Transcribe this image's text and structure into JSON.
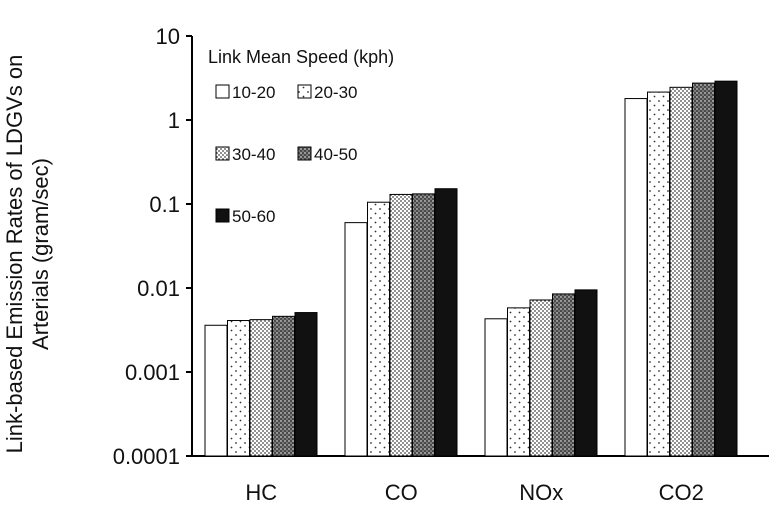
{
  "chart_data": {
    "type": "bar",
    "ylabel_line1": "Link-based Emission Rates of LDGVs on",
    "ylabel_line2": "Arterials (gram/sec)",
    "y_scale": "log",
    "ylim": [
      0.0001,
      10
    ],
    "yticks": [
      "10",
      "1",
      "0.1",
      "0.01",
      "0.001",
      "0.0001"
    ],
    "categories": [
      "HC",
      "CO",
      "NOx",
      "CO2"
    ],
    "legend": {
      "title": "Link Mean Speed (kph)",
      "placement": "top-left inside"
    },
    "series": [
      {
        "name": "10-20",
        "pattern": "white",
        "values": [
          0.0036,
          0.06,
          0.0043,
          1.8
        ]
      },
      {
        "name": "20-30",
        "pattern": "sparse-dots",
        "values": [
          0.0041,
          0.105,
          0.0058,
          2.15
        ]
      },
      {
        "name": "30-40",
        "pattern": "dense-dots",
        "values": [
          0.0042,
          0.13,
          0.0072,
          2.45
        ]
      },
      {
        "name": "40-50",
        "pattern": "cross-hatch",
        "values": [
          0.0046,
          0.132,
          0.0085,
          2.75
        ]
      },
      {
        "name": "50-60",
        "pattern": "black",
        "values": [
          0.0051,
          0.152,
          0.0095,
          2.9
        ]
      }
    ],
    "grid": false
  }
}
